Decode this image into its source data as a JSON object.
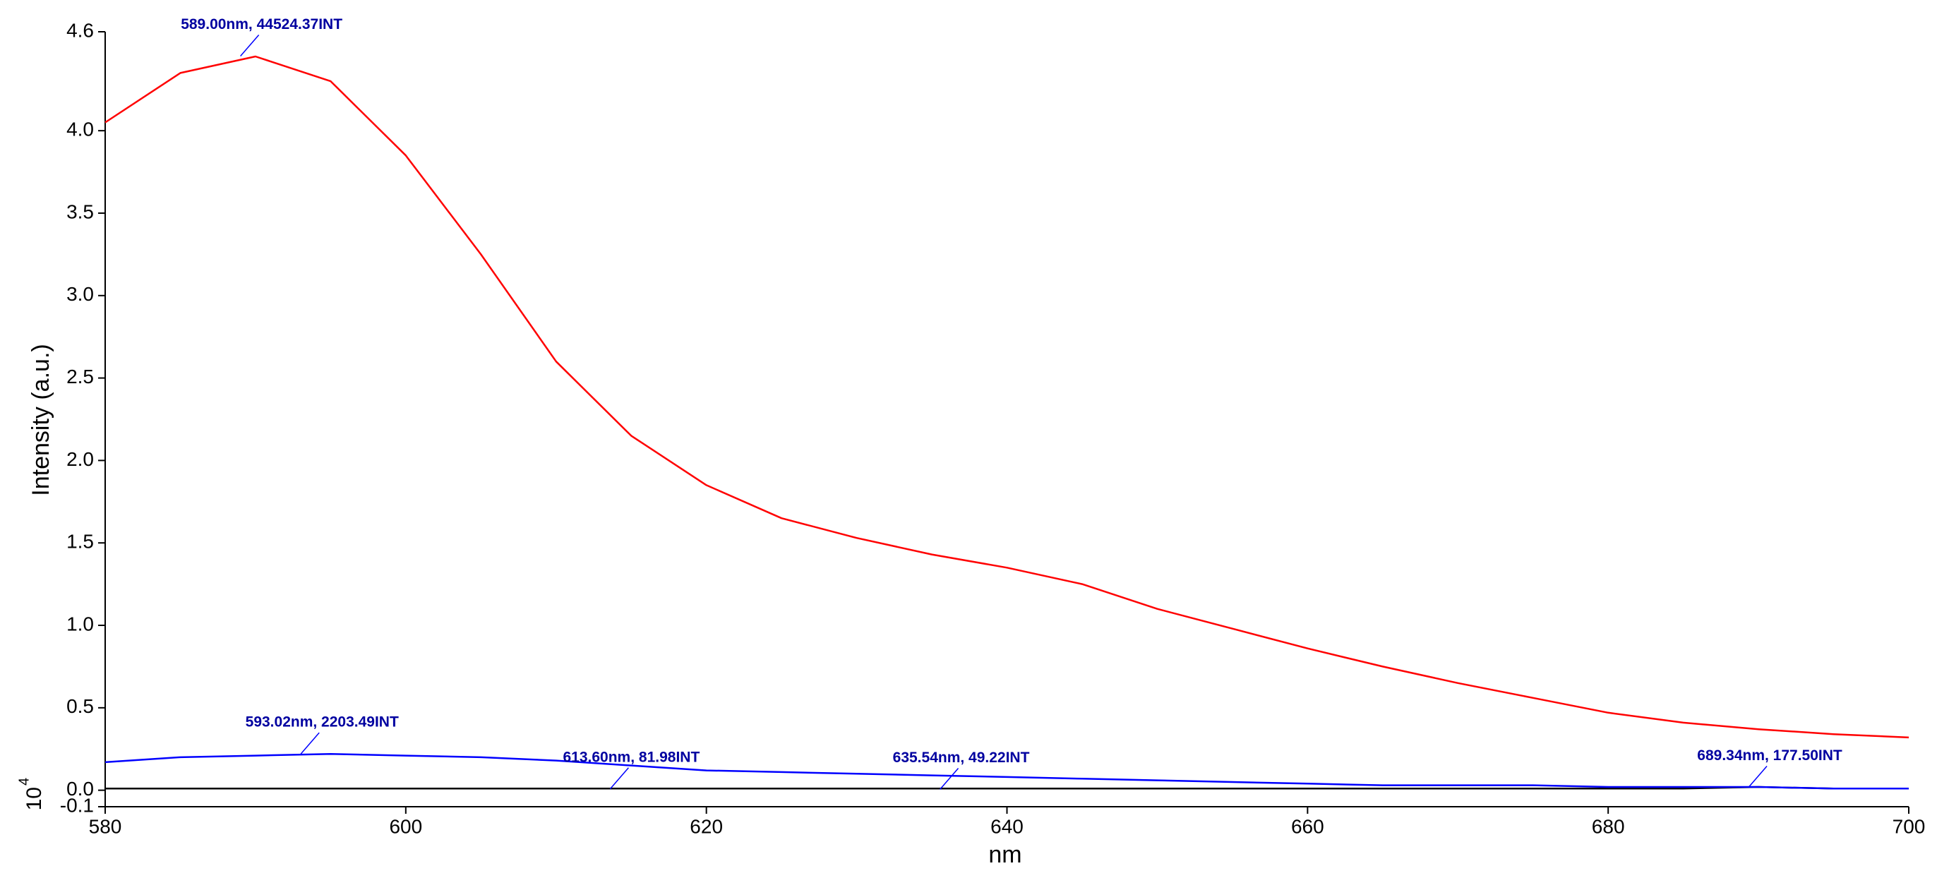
{
  "chart_data": {
    "type": "line",
    "y_label": "Intensity (a.u.)",
    "x_label": "nm",
    "y_scale_base": "10",
    "y_scale_exponent": "4",
    "x": [
      580,
      585,
      590,
      595,
      600,
      605,
      610,
      615,
      620,
      625,
      630,
      635,
      640,
      645,
      650,
      655,
      660,
      665,
      670,
      675,
      680,
      685,
      690,
      695,
      700
    ],
    "series": [
      {
        "color": "#ff0000",
        "values": [
          4.05,
          4.35,
          4.45,
          4.3,
          3.85,
          3.25,
          2.6,
          2.15,
          1.85,
          1.65,
          1.53,
          1.43,
          1.35,
          1.25,
          1.1,
          0.98,
          0.86,
          0.75,
          0.65,
          0.56,
          0.47,
          0.41,
          0.37,
          0.34,
          0.32
        ]
      },
      {
        "color": "#0000ff",
        "values": [
          0.17,
          0.2,
          0.21,
          0.22,
          0.21,
          0.2,
          0.18,
          0.15,
          0.12,
          0.11,
          0.1,
          0.09,
          0.08,
          0.07,
          0.06,
          0.05,
          0.04,
          0.03,
          0.03,
          0.03,
          0.02,
          0.02,
          0.02,
          0.01,
          0.01
        ]
      },
      {
        "color": "#000000",
        "values": [
          0.01,
          0.01,
          0.01,
          0.01,
          0.01,
          0.01,
          0.01,
          0.01,
          0.01,
          0.01,
          0.01,
          0.01,
          0.01,
          0.01,
          0.01,
          0.01,
          0.01,
          0.01,
          0.01,
          0.01,
          0.01,
          0.01,
          0.02,
          0.01,
          0.01
        ]
      }
    ],
    "annotations": [
      {
        "text": "589.00nm, 44524.37INT",
        "x": 589,
        "y": 4.452437
      },
      {
        "text": "593.02nm, 2203.49INT",
        "x": 593.02,
        "y": 0.220349
      },
      {
        "text": "613.60nm, 81.98INT",
        "x": 613.6,
        "y": 0.008198
      },
      {
        "text": "635.54nm, 49.22INT",
        "x": 635.54,
        "y": 0.004922
      },
      {
        "text": "689.34nm, 177.50INT",
        "x": 689.34,
        "y": 0.01775
      }
    ],
    "xlim": [
      580,
      700
    ],
    "xticks": [
      580,
      600,
      620,
      640,
      660,
      680,
      700
    ],
    "ylim": [
      -0.1,
      4.6
    ],
    "yticks": [
      -0.1,
      {
        "value": 0,
        "label": "0.0"
      },
      0.5,
      {
        "value": 1,
        "label": "1.0"
      },
      1.5,
      {
        "value": 2,
        "label": "2.0"
      },
      2.5,
      {
        "value": 3,
        "label": "3.0"
      },
      3.5,
      {
        "value": 4,
        "label": "4.0"
      },
      4.6
    ]
  }
}
